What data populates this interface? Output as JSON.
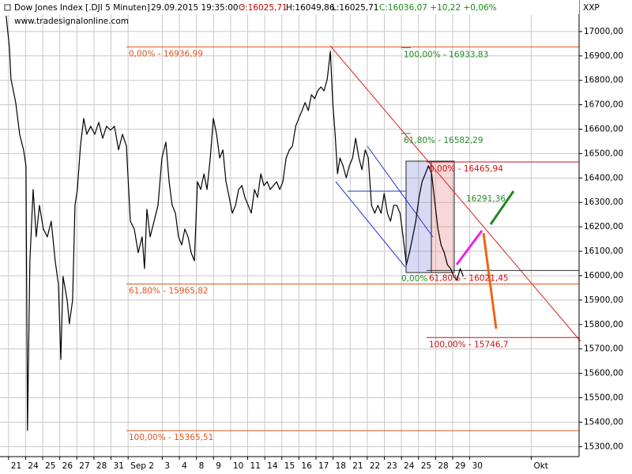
{
  "header": {
    "title": "Dow Jones Index [.DJI  5 Minuten]",
    "datetime": "29.09.2015 19:35:00 :",
    "open": "O:16025,71",
    "high": "H:16049,86",
    "low": "L:16025,71",
    "close": "C:16036,07 +10,22 +0,06%"
  },
  "chart_data": {
    "type": "line",
    "source": "www.tradesignalonline.com",
    "axis_label": "XXP",
    "color": "#000000",
    "grid": true,
    "x": [
      -0.14,
      0.05,
      0.14,
      0.42,
      0.65,
      0.88,
      1.02,
      1.11,
      1.25,
      1.44,
      1.62,
      1.81,
      2.04,
      2.27,
      2.5,
      2.73,
      2.92,
      3.06,
      3.19,
      3.43,
      3.56,
      3.75,
      3.89,
      4.03,
      4.21,
      4.4,
      4.58,
      4.81,
      5.05,
      5.28,
      5.51,
      5.74,
      5.97,
      6.2,
      6.44,
      6.67,
      6.9,
      7.13,
      7.36,
      7.59,
      7.82,
      7.96,
      8.1,
      8.29,
      8.52,
      8.75,
      8.98,
      9.21,
      9.4,
      9.58,
      9.77,
      9.95,
      10.14,
      10.32,
      10.51,
      10.69,
      10.88,
      11.06,
      11.25,
      11.44,
      11.62,
      11.81,
      11.99,
      12.18,
      12.36,
      12.55,
      12.73,
      12.92,
      13.1,
      13.29,
      13.47,
      13.66,
      13.84,
      14.03,
      14.21,
      14.4,
      14.58,
      14.77,
      14.95,
      15.14,
      15.32,
      15.51,
      15.69,
      15.88,
      16.06,
      16.25,
      16.44,
      16.62,
      16.81,
      16.99,
      17.18,
      17.36,
      17.55,
      17.73,
      17.92,
      18.1,
      18.29,
      18.47,
      18.66,
      18.84,
      18.98,
      19.12,
      19.26,
      19.4,
      19.58,
      19.77,
      19.95,
      20.14,
      20.32,
      20.51,
      20.69,
      20.88,
      21.06,
      21.25,
      21.44,
      21.62,
      21.81,
      21.99,
      22.18,
      22.36,
      22.55,
      22.73,
      22.92,
      23.1,
      23.29,
      23.47,
      23.66,
      23.84,
      24.03,
      24.21,
      24.4,
      24.58,
      24.77,
      24.95,
      25.14,
      25.32,
      25.51,
      25.69,
      25.88,
      26.06,
      26.25,
      26.44,
      26.62
    ],
    "values": [
      17065,
      16935,
      16806,
      16709,
      16579,
      16515,
      16450,
      15366,
      16061,
      16353,
      16159,
      16288,
      16191,
      16159,
      16223,
      16061,
      15964,
      15657,
      15997,
      15900,
      15803,
      15900,
      16288,
      16353,
      16531,
      16644,
      16579,
      16612,
      16579,
      16628,
      16563,
      16612,
      16596,
      16612,
      16515,
      16579,
      16531,
      16223,
      16191,
      16094,
      16159,
      16029,
      16272,
      16159,
      16223,
      16288,
      16482,
      16547,
      16385,
      16288,
      16256,
      16159,
      16126,
      16191,
      16159,
      16094,
      16061,
      16385,
      16353,
      16417,
      16353,
      16482,
      16644,
      16579,
      16482,
      16515,
      16385,
      16320,
      16256,
      16288,
      16353,
      16369,
      16320,
      16288,
      16256,
      16353,
      16320,
      16417,
      16369,
      16385,
      16353,
      16369,
      16385,
      16353,
      16385,
      16482,
      16515,
      16531,
      16612,
      16644,
      16676,
      16709,
      16676,
      16741,
      16725,
      16757,
      16773,
      16757,
      16806,
      16919,
      16709,
      16579,
      16417,
      16482,
      16450,
      16401,
      16450,
      16482,
      16563,
      16482,
      16434,
      16515,
      16482,
      16288,
      16256,
      16288,
      16256,
      16337,
      16256,
      16223,
      16288,
      16288,
      16256,
      16159,
      16045,
      16094,
      16159,
      16223,
      16320,
      16385,
      16417,
      16450,
      16417,
      16304,
      16191,
      16126,
      16094,
      16045,
      16029,
      15997,
      15981,
      16029,
      15997
    ],
    "xlim": [
      -0.5,
      33.4
    ],
    "xticks": [
      {
        "value": 0,
        "label": "21"
      },
      {
        "value": 1,
        "label": "24"
      },
      {
        "value": 2,
        "label": "25"
      },
      {
        "value": 3,
        "label": "26"
      },
      {
        "value": 4,
        "label": "27"
      },
      {
        "value": 5,
        "label": "28"
      },
      {
        "value": 6,
        "label": "31"
      },
      {
        "value": 7,
        "label": "Sep 2"
      },
      {
        "value": 9,
        "label": "3"
      },
      {
        "value": 10,
        "label": "4"
      },
      {
        "value": 11,
        "label": "8"
      },
      {
        "value": 12,
        "label": "9"
      },
      {
        "value": 13,
        "label": "10"
      },
      {
        "value": 14,
        "label": "11"
      },
      {
        "value": 15,
        "label": "14"
      },
      {
        "value": 16,
        "label": "15"
      },
      {
        "value": 17,
        "label": "16"
      },
      {
        "value": 18,
        "label": "17"
      },
      {
        "value": 19,
        "label": "18"
      },
      {
        "value": 20,
        "label": "21"
      },
      {
        "value": 21,
        "label": "22"
      },
      {
        "value": 22,
        "label": "23"
      },
      {
        "value": 23,
        "label": "24"
      },
      {
        "value": 24,
        "label": "25"
      },
      {
        "value": 25,
        "label": "28"
      },
      {
        "value": 26,
        "label": "29"
      },
      {
        "value": 27,
        "label": "30"
      },
      {
        "value": 30.6,
        "label": "Okt"
      }
    ],
    "ylim": [
      15259,
      17129
    ],
    "yticks": [
      {
        "value": 15300,
        "label": "15300,00"
      },
      {
        "value": 15400,
        "label": "15400,00"
      },
      {
        "value": 15500,
        "label": "15500,00"
      },
      {
        "value": 15600,
        "label": "15600,00"
      },
      {
        "value": 15700,
        "label": "15700,00"
      },
      {
        "value": 15800,
        "label": "15800,00"
      },
      {
        "value": 15900,
        "label": "15900,00"
      },
      {
        "value": 16000,
        "label": "16000,00"
      },
      {
        "value": 16100,
        "label": "16100,00"
      },
      {
        "value": 16200,
        "label": "16200,00"
      },
      {
        "value": 16300,
        "label": "16300,00"
      },
      {
        "value": 16400,
        "label": "16400,00"
      },
      {
        "value": 16500,
        "label": "16500,00"
      },
      {
        "value": 16600,
        "label": "16600,00"
      },
      {
        "value": 16700,
        "label": "16700,00"
      },
      {
        "value": 16800,
        "label": "16800,00"
      },
      {
        "value": 16900,
        "label": "16900,00"
      },
      {
        "value": 17000,
        "label": "17000,00"
      }
    ],
    "levels": [
      {
        "value": 16936.99,
        "label": "0,00% - 16936,99",
        "color": "#e2541c"
      },
      {
        "value": 15965.82,
        "label": "61,80% - 15965,82",
        "color": "#e2541c"
      },
      {
        "value": 15365.51,
        "label": "100,00% - 15365,51",
        "color": "#e2541c"
      },
      {
        "value": 16933.83,
        "label": "100,00% - 16933,83",
        "color": "#2a8a2a"
      },
      {
        "value": 16582.29,
        "label": "61,80% - 16582,29",
        "color": "#2a8a2a"
      },
      {
        "value": 16465.94,
        "label": "0,00% - 16465,94",
        "color": "#cc1111"
      },
      {
        "value": 16021.45,
        "label": "61,80% - 16021,45",
        "color": "#cc1111"
      },
      {
        "value": 15746.7,
        "label": "100,00% - 15746,7",
        "color": "#cc1111"
      }
    ],
    "annotations": [
      {
        "text": "0,00%",
        "color": "#2a8a2a"
      },
      {
        "text": "16291,36",
        "color": "#2a8a2a"
      }
    ]
  }
}
